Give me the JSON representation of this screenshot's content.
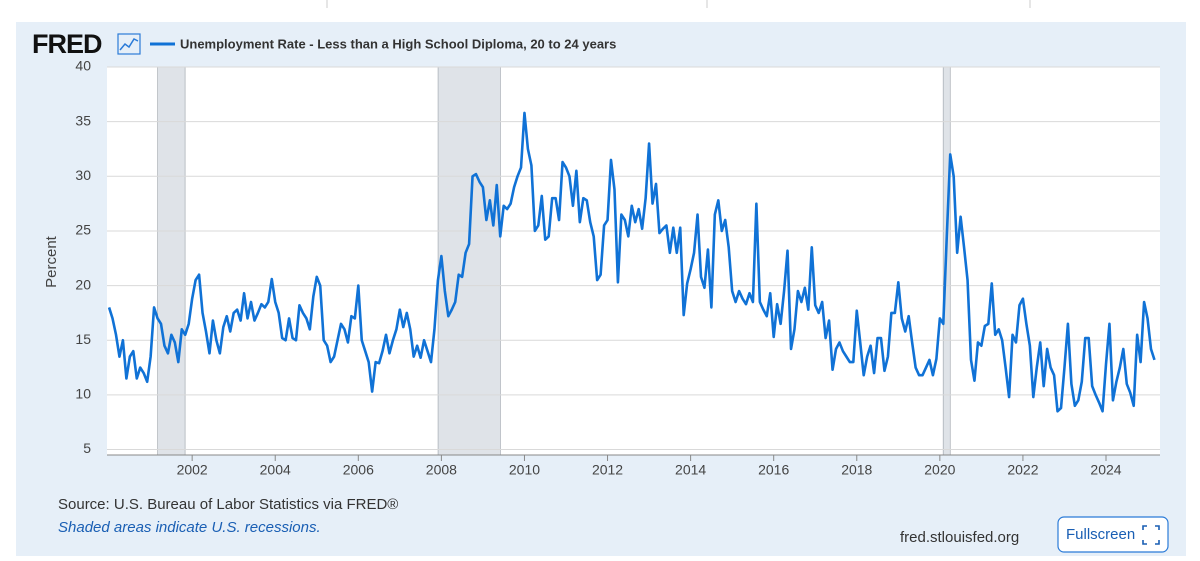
{
  "logo": "FRED",
  "source": "Source: U.S. Bureau of Labor Statistics via FRED®",
  "note": "Shaded areas indicate U.S. recessions.",
  "site": "fred.stlouisfed.org",
  "button": "Fullscreen",
  "chart_data": {
    "type": "line",
    "ylabel": "Percent",
    "xlim": [
      1999.95,
      2025.3
    ],
    "ylim": [
      4.5,
      40
    ],
    "xticks": [
      2002,
      2004,
      2006,
      2008,
      2010,
      2012,
      2014,
      2016,
      2018,
      2020,
      2022,
      2024
    ],
    "yticks": [
      5,
      10,
      15,
      20,
      25,
      30,
      35,
      40
    ],
    "grid": true,
    "recessions": [
      [
        2001.17,
        2001.83
      ],
      [
        2007.92,
        2009.42
      ],
      [
        2020.08,
        2020.25
      ]
    ],
    "x": [
      2000,
      2000.083,
      2000.167,
      2000.25,
      2000.333,
      2000.417,
      2000.5,
      2000.583,
      2000.667,
      2000.75,
      2000.833,
      2000.917,
      2001,
      2001.083,
      2001.167,
      2001.25,
      2001.333,
      2001.417,
      2001.5,
      2001.583,
      2001.667,
      2001.75,
      2001.833,
      2001.917,
      2002,
      2002.083,
      2002.167,
      2002.25,
      2002.333,
      2002.417,
      2002.5,
      2002.583,
      2002.667,
      2002.75,
      2002.833,
      2002.917,
      2003,
      2003.083,
      2003.167,
      2003.25,
      2003.333,
      2003.417,
      2003.5,
      2003.583,
      2003.667,
      2003.75,
      2003.833,
      2003.917,
      2004,
      2004.083,
      2004.167,
      2004.25,
      2004.333,
      2004.417,
      2004.5,
      2004.583,
      2004.667,
      2004.75,
      2004.833,
      2004.917,
      2005,
      2005.083,
      2005.167,
      2005.25,
      2005.333,
      2005.417,
      2005.5,
      2005.583,
      2005.667,
      2005.75,
      2005.833,
      2005.917,
      2006,
      2006.083,
      2006.167,
      2006.25,
      2006.333,
      2006.417,
      2006.5,
      2006.583,
      2006.667,
      2006.75,
      2006.833,
      2006.917,
      2007,
      2007.083,
      2007.167,
      2007.25,
      2007.333,
      2007.417,
      2007.5,
      2007.583,
      2007.667,
      2007.75,
      2007.833,
      2007.917,
      2008,
      2008.083,
      2008.167,
      2008.25,
      2008.333,
      2008.417,
      2008.5,
      2008.583,
      2008.667,
      2008.75,
      2008.833,
      2008.917,
      2009,
      2009.083,
      2009.167,
      2009.25,
      2009.333,
      2009.417,
      2009.5,
      2009.583,
      2009.667,
      2009.75,
      2009.833,
      2009.917,
      2010,
      2010.083,
      2010.167,
      2010.25,
      2010.333,
      2010.417,
      2010.5,
      2010.583,
      2010.667,
      2010.75,
      2010.833,
      2010.917,
      2011,
      2011.083,
      2011.167,
      2011.25,
      2011.333,
      2011.417,
      2011.5,
      2011.583,
      2011.667,
      2011.75,
      2011.833,
      2011.917,
      2012,
      2012.083,
      2012.167,
      2012.25,
      2012.333,
      2012.417,
      2012.5,
      2012.583,
      2012.667,
      2012.75,
      2012.833,
      2012.917,
      2013,
      2013.083,
      2013.167,
      2013.25,
      2013.333,
      2013.417,
      2013.5,
      2013.583,
      2013.667,
      2013.75,
      2013.833,
      2013.917,
      2014,
      2014.083,
      2014.167,
      2014.25,
      2014.333,
      2014.417,
      2014.5,
      2014.583,
      2014.667,
      2014.75,
      2014.833,
      2014.917,
      2015,
      2015.083,
      2015.167,
      2015.25,
      2015.333,
      2015.417,
      2015.5,
      2015.583,
      2015.667,
      2015.75,
      2015.833,
      2015.917,
      2016,
      2016.083,
      2016.167,
      2016.25,
      2016.333,
      2016.417,
      2016.5,
      2016.583,
      2016.667,
      2016.75,
      2016.833,
      2016.917,
      2017,
      2017.083,
      2017.167,
      2017.25,
      2017.333,
      2017.417,
      2017.5,
      2017.583,
      2017.667,
      2017.75,
      2017.833,
      2017.917,
      2018,
      2018.083,
      2018.167,
      2018.25,
      2018.333,
      2018.417,
      2018.5,
      2018.583,
      2018.667,
      2018.75,
      2018.833,
      2018.917,
      2019,
      2019.083,
      2019.167,
      2019.25,
      2019.333,
      2019.417,
      2019.5,
      2019.583,
      2019.667,
      2019.75,
      2019.833,
      2019.917,
      2020,
      2020.083,
      2020.167,
      2020.25,
      2020.333,
      2020.417,
      2020.5,
      2020.583,
      2020.667,
      2020.75,
      2020.833,
      2020.917,
      2021,
      2021.083,
      2021.167,
      2021.25,
      2021.333,
      2021.417,
      2021.5,
      2021.583,
      2021.667,
      2021.75,
      2021.833,
      2021.917,
      2022,
      2022.083,
      2022.167,
      2022.25,
      2022.333,
      2022.417,
      2022.5,
      2022.583,
      2022.667,
      2022.75,
      2022.833,
      2022.917,
      2023,
      2023.083,
      2023.167,
      2023.25,
      2023.333,
      2023.417,
      2023.5,
      2023.583,
      2023.667,
      2023.75,
      2023.833,
      2023.917,
      2024,
      2024.083,
      2024.167,
      2024.25,
      2024.333,
      2024.417,
      2024.5,
      2024.583,
      2024.667,
      2024.75,
      2024.833,
      2024.917,
      2025,
      2025.083,
      2025.167
    ],
    "series": [
      {
        "name": "Unemployment Rate - Less than a High School Diploma, 20 to 24 years",
        "color": "#1072d6",
        "values": [
          18,
          17,
          15.5,
          13.5,
          15,
          11.5,
          13.5,
          14,
          11.5,
          12.5,
          12,
          11.2,
          13.5,
          18,
          17,
          16.5,
          14.5,
          13.8,
          15.5,
          14.8,
          13,
          16,
          15.5,
          16.5,
          18.8,
          20.5,
          21,
          17.5,
          15.8,
          13.8,
          16.8,
          15,
          13.8,
          16.2,
          17.2,
          15.8,
          17.5,
          17.8,
          16.8,
          19.3,
          17,
          18.5,
          16.8,
          17.5,
          18.3,
          18,
          18.5,
          20.6,
          18.5,
          17.5,
          15.2,
          15,
          17,
          15.2,
          15,
          18.2,
          17.5,
          17,
          16,
          19,
          20.8,
          20,
          15,
          14.5,
          13,
          13.5,
          15,
          16.5,
          16,
          14.8,
          17.2,
          17,
          20,
          15,
          14,
          13,
          10.3,
          13,
          12.9,
          14,
          15.5,
          13.8,
          15,
          16,
          17.8,
          16.2,
          17.5,
          16,
          13.5,
          14.5,
          13.4,
          15,
          14,
          13,
          16,
          20.5,
          22.7,
          19.5,
          17.2,
          17.8,
          18.5,
          21,
          20.8,
          23,
          23.8,
          30,
          30.2,
          29.5,
          29,
          26,
          27.8,
          25.5,
          29.2,
          24.5,
          27.3,
          27,
          27.5,
          29,
          30,
          30.8,
          35.8,
          32.5,
          31,
          25,
          25.5,
          28.2,
          24.2,
          24.5,
          28,
          28,
          26,
          31.3,
          30.8,
          30,
          27.3,
          30.5,
          25.8,
          28,
          27.8,
          25.8,
          24.5,
          20.5,
          21,
          25.5,
          26,
          31.5,
          28.8,
          20.3,
          26.5,
          26,
          24.5,
          27.3,
          25.8,
          27,
          25.2,
          28,
          33,
          27.5,
          29.3,
          24.8,
          25.2,
          25.5,
          23,
          25.3,
          23,
          25.3,
          17.3,
          20.2,
          21.5,
          23,
          26.5,
          20.8,
          19.8,
          23.3,
          18,
          26.5,
          27.8,
          25,
          26,
          23.5,
          19.5,
          18.5,
          19.5,
          18.8,
          18.3,
          19.3,
          18.5,
          27.5,
          18.5,
          17.8,
          17.2,
          19.3,
          15.3,
          18.3,
          16.5,
          19.5,
          23.2,
          14.2,
          16,
          19.5,
          18.5,
          19.8,
          17.8,
          23.5,
          18.2,
          17.5,
          18.5,
          15.2,
          16.8,
          12.3,
          14.2,
          14.8,
          14,
          13.5,
          13,
          13,
          17.7,
          14.8,
          11.8,
          13.5,
          14.5,
          12,
          15.2,
          15.2,
          12.2,
          13.5,
          17.5,
          17.5,
          20.3,
          17,
          15.8,
          17.2,
          14.8,
          12.5,
          11.8,
          11.8,
          12.5,
          13.2,
          11.8,
          13.3,
          17,
          16.5,
          24.5,
          32,
          30,
          23,
          26.3,
          23.5,
          20.5,
          13.2,
          11.3,
          14.8,
          14.5,
          16.3,
          16.5,
          20.2,
          15.5,
          16,
          15,
          12.5,
          9.8,
          15.5,
          14.8,
          18.2,
          18.8,
          16.5,
          14.5,
          9.8,
          12.5,
          14.8,
          10.8,
          14.2,
          12.5,
          11.8,
          8.5,
          8.8,
          12.5,
          16.5,
          11,
          9,
          9.5,
          11.2,
          15.2,
          15.2,
          10.8,
          10,
          9.3,
          8.5,
          12.8,
          16.5,
          9.5,
          11.2,
          12.5,
          14.2,
          11,
          10.2,
          9,
          15.5,
          13,
          18.5,
          17,
          14.2,
          13.2
        ]
      }
    ]
  }
}
